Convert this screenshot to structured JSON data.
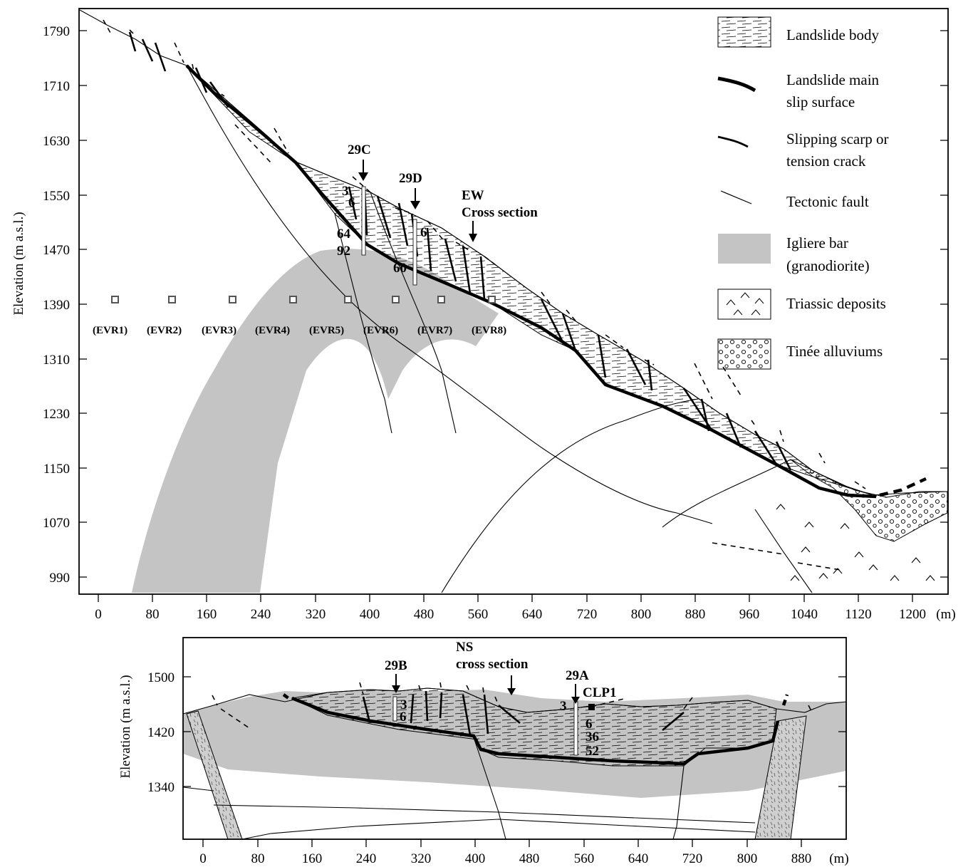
{
  "top_section": {
    "y_axis_title": "Elevation (m a.s.l.)",
    "y_ticks": [
      "1790",
      "1710",
      "1630",
      "1550",
      "1470",
      "1390",
      "1310",
      "1230",
      "1150",
      "1070",
      "990"
    ],
    "x_ticks": [
      "0",
      "80",
      "160",
      "240",
      "320",
      "400",
      "480",
      "560",
      "640",
      "720",
      "800",
      "880",
      "960",
      "1040",
      "1120",
      "1200"
    ],
    "x_unit": "(m)",
    "boreholes": [
      {
        "name": "29C",
        "depths": [
          "3",
          "6",
          "64",
          "92"
        ]
      },
      {
        "name": "29D",
        "depths": [
          "6",
          "60"
        ]
      }
    ],
    "cross_section_label_line1": "EW",
    "cross_section_label_line2": "Cross section",
    "evr_points": [
      "(EVR1)",
      "(EVR2)",
      "(EVR3)",
      "(EVR4)",
      "(EVR5)",
      "(EVR6)",
      "(EVR7)",
      "(EVR8)"
    ]
  },
  "legend": {
    "items": [
      {
        "key": "landslide-body",
        "line1": "Landslide body",
        "line2": ""
      },
      {
        "key": "slip-surface",
        "line1": "Landslide main",
        "line2": "slip surface"
      },
      {
        "key": "scarp",
        "line1": "Slipping scarp or",
        "line2": "tension crack"
      },
      {
        "key": "fault",
        "line1": "Tectonic fault",
        "line2": ""
      },
      {
        "key": "igliere-bar",
        "line1": "Igliere bar",
        "line2": "(granodiorite)"
      },
      {
        "key": "triassic",
        "line1": "Triassic deposits",
        "line2": ""
      },
      {
        "key": "tinee",
        "line1": "Tinée alluviums",
        "line2": ""
      }
    ]
  },
  "bottom_section": {
    "y_axis_title": "Elevation (m a.s.l.)",
    "y_ticks": [
      "1500",
      "1420",
      "1340"
    ],
    "x_ticks": [
      "0",
      "80",
      "160",
      "240",
      "320",
      "400",
      "480",
      "560",
      "640",
      "720",
      "800",
      "880"
    ],
    "x_unit": "(m)",
    "boreholes": [
      {
        "name": "29B",
        "depths": [
          "3",
          "6"
        ]
      },
      {
        "name": "29A",
        "depths": [
          "3",
          "6",
          "36",
          "52"
        ]
      }
    ],
    "cross_section_label_line1": "NS",
    "cross_section_label_line2": "cross section",
    "station_label": "CLP1"
  },
  "colors": {
    "igliere_bar": "#c4c4c4",
    "line": "#000000",
    "background": "#ffffff"
  }
}
